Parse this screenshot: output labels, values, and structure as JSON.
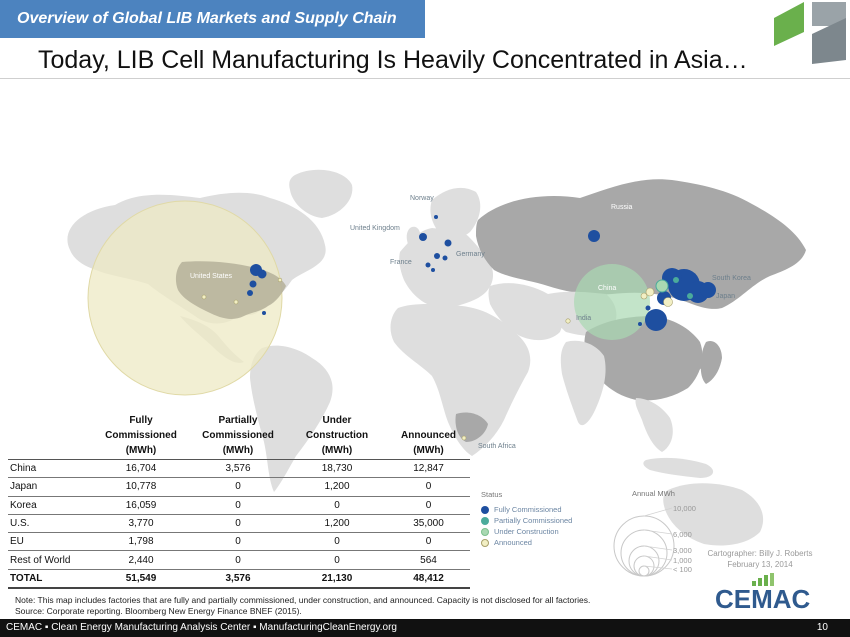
{
  "header": {
    "banner": "Overview of Global LIB Markets and Supply Chain",
    "title": "Today, LIB Cell Manufacturing Is Heavily Concentrated in Asia…"
  },
  "map": {
    "country_labels": {
      "norway": "Norway",
      "united_kingdom": "United Kingdom",
      "france": "France",
      "germany": "Germany",
      "russia": "Russia",
      "united_states": "United States",
      "china": "China",
      "india": "India",
      "south_korea": "South Korea",
      "japan": "Japan",
      "south_africa": "South Africa"
    },
    "colors": {
      "ocean": "#ffffff",
      "land_light": "#dedede",
      "land_highlight": "#a8a8a8",
      "fully_commissioned": "#1e4fa0",
      "partially_commissioned": "#4bab9b",
      "under_construction": "#a9d8b2",
      "announced": "#f2efc4"
    }
  },
  "table": {
    "headers": {
      "fully": [
        "Fully",
        "Commissioned",
        "(MWh)"
      ],
      "partially": [
        "Partially",
        "Commissioned",
        "(MWh)"
      ],
      "under": [
        "Under",
        "Construction",
        "(MWh)"
      ],
      "announced": [
        "",
        "Announced",
        "(MWh)"
      ]
    },
    "rows": [
      {
        "label": "China",
        "fully": "16,704",
        "partially": "3,576",
        "under": "18,730",
        "announced": "12,847"
      },
      {
        "label": "Japan",
        "fully": "10,778",
        "partially": "0",
        "under": "1,200",
        "announced": "0"
      },
      {
        "label": "Korea",
        "fully": "16,059",
        "partially": "0",
        "under": "0",
        "announced": "0"
      },
      {
        "label": "U.S.",
        "fully": "3,770",
        "partially": "0",
        "under": "1,200",
        "announced": "35,000"
      },
      {
        "label": "EU",
        "fully": "1,798",
        "partially": "0",
        "under": "0",
        "announced": "0"
      },
      {
        "label": "Rest of World",
        "fully": "2,440",
        "partially": "0",
        "under": "0",
        "announced": "564"
      }
    ],
    "total": {
      "label": "TOTAL",
      "fully": "51,549",
      "partially": "3,576",
      "under": "21,130",
      "announced": "48,412"
    }
  },
  "legend": {
    "status_title": "Status",
    "items": [
      "Fully Commissioned",
      "Partially Commissioned",
      "Under Construction",
      "Announced"
    ],
    "size_title": "Annual MWh",
    "sizes": [
      "10,000",
      "6,000",
      "3,000",
      "1,000",
      "< 100"
    ]
  },
  "cartographer": {
    "name": "Cartographer: Billy J. Roberts",
    "date": "February 13, 2014"
  },
  "note": {
    "line1": "Note:  This map includes factories that are fully and partially commissioned, under construction, and announced.  Capacity is not disclosed for all factories.",
    "line2": "Source:  Corporate reporting.  Bloomberg New Energy Finance BNEF (2015)."
  },
  "logo": {
    "text": "CEMAC"
  },
  "footer": {
    "text": "CEMAC ▪ Clean Energy Manufacturing Analysis Center ▪ ManufacturingCleanEnergy.org",
    "page": "10"
  }
}
